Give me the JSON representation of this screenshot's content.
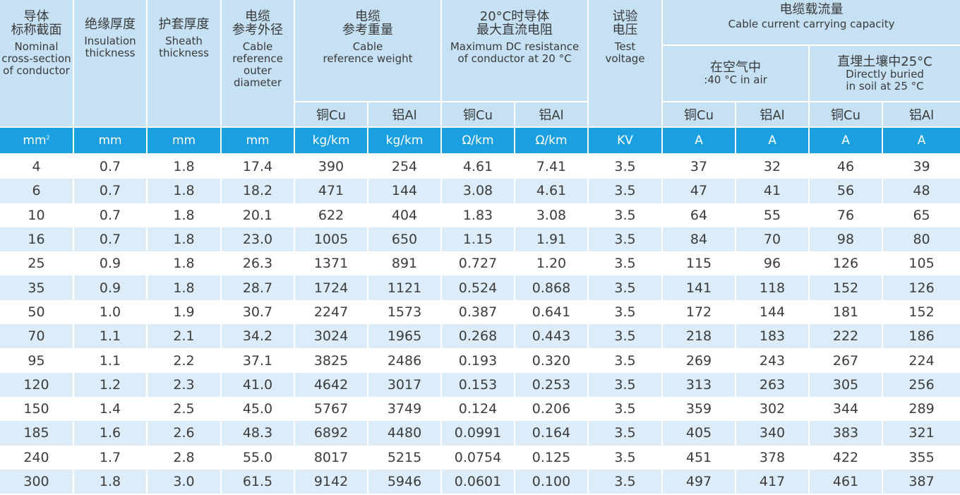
{
  "columns": {
    "nominal": {
      "zh": "导体\n标称截面",
      "en": "Nominal\ncross-section\nof conductor"
    },
    "insulation": {
      "zh": "绝缘厚度",
      "en": "Insulation\nthickness"
    },
    "sheath": {
      "zh": "护套厚度",
      "en": "Sheath\nthickness"
    },
    "diameter": {
      "zh": "电缆\n参考外径",
      "en": "Cable\nreference\nouter\ndiameter"
    },
    "weight": {
      "zh": "电缆\n参考重量",
      "en": "Cable\nreference weight"
    },
    "resistance": {
      "zh": "20°C时导体\n最大直流电阻",
      "en": "Maximum DC resistance\nof conductor at 20 °C"
    },
    "voltage": {
      "zh": "试验\n电压",
      "en": "Test\nvoltage"
    },
    "capacity": {
      "zh": "电缆载流量",
      "en": "Cable current carrying capacity"
    },
    "air": {
      "zh": "在空气中",
      "en": ":40 °C in air"
    },
    "soil": {
      "zh": "直埋土壤中25°C",
      "en": "Directly buried\nin soil at 25 °C"
    }
  },
  "material": {
    "cu": "铜Cu",
    "al": "铝Al"
  },
  "units": {
    "area_base": "mm",
    "area_sup": "2",
    "mm": "mm",
    "weight": "kg/km",
    "resistance": "Ω/km",
    "voltage": "KV",
    "current": "A"
  },
  "rows": [
    [
      "4",
      "0.7",
      "1.8",
      "17.4",
      "390",
      "254",
      "4.61",
      "7.41",
      "3.5",
      "37",
      "32",
      "46",
      "39"
    ],
    [
      "6",
      "0.7",
      "1.8",
      "18.2",
      "471",
      "144",
      "3.08",
      "4.61",
      "3.5",
      "47",
      "41",
      "56",
      "48"
    ],
    [
      "10",
      "0.7",
      "1.8",
      "20.1",
      "622",
      "404",
      "1.83",
      "3.08",
      "3.5",
      "64",
      "55",
      "76",
      "65"
    ],
    [
      "16",
      "0.7",
      "1.8",
      "23.0",
      "1005",
      "650",
      "1.15",
      "1.91",
      "3.5",
      "84",
      "70",
      "98",
      "80"
    ],
    [
      "25",
      "0.9",
      "1.8",
      "26.3",
      "1371",
      "891",
      "0.727",
      "1.20",
      "3.5",
      "115",
      "96",
      "126",
      "105"
    ],
    [
      "35",
      "0.9",
      "1.8",
      "28.7",
      "1724",
      "1121",
      "0.524",
      "0.868",
      "3.5",
      "141",
      "118",
      "152",
      "126"
    ],
    [
      "50",
      "1.0",
      "1.9",
      "30.7",
      "2247",
      "1573",
      "0.387",
      "0.641",
      "3.5",
      "172",
      "144",
      "181",
      "152"
    ],
    [
      "70",
      "1.1",
      "2.1",
      "34.2",
      "3024",
      "1965",
      "0.268",
      "0.443",
      "3.5",
      "218",
      "183",
      "222",
      "186"
    ],
    [
      "95",
      "1.1",
      "2.2",
      "37.1",
      "3825",
      "2486",
      "0.193",
      "0.320",
      "3.5",
      "269",
      "243",
      "267",
      "224"
    ],
    [
      "120",
      "1.2",
      "2.3",
      "41.0",
      "4642",
      "3017",
      "0.153",
      "0.253",
      "3.5",
      "313",
      "263",
      "305",
      "256"
    ],
    [
      "150",
      "1.4",
      "2.5",
      "45.0",
      "5767",
      "3749",
      "0.124",
      "0.206",
      "3.5",
      "359",
      "302",
      "344",
      "289"
    ],
    [
      "185",
      "1.6",
      "2.6",
      "48.3",
      "6892",
      "4480",
      "0.0991",
      "0.164",
      "3.5",
      "405",
      "340",
      "383",
      "321"
    ],
    [
      "240",
      "1.7",
      "2.8",
      "55.0",
      "8017",
      "5215",
      "0.0754",
      "0.125",
      "3.5",
      "451",
      "378",
      "422",
      "355"
    ],
    [
      "300",
      "1.8",
      "3.0",
      "61.5",
      "9142",
      "5946",
      "0.0601",
      "0.100",
      "3.5",
      "497",
      "417",
      "461",
      "387"
    ]
  ]
}
